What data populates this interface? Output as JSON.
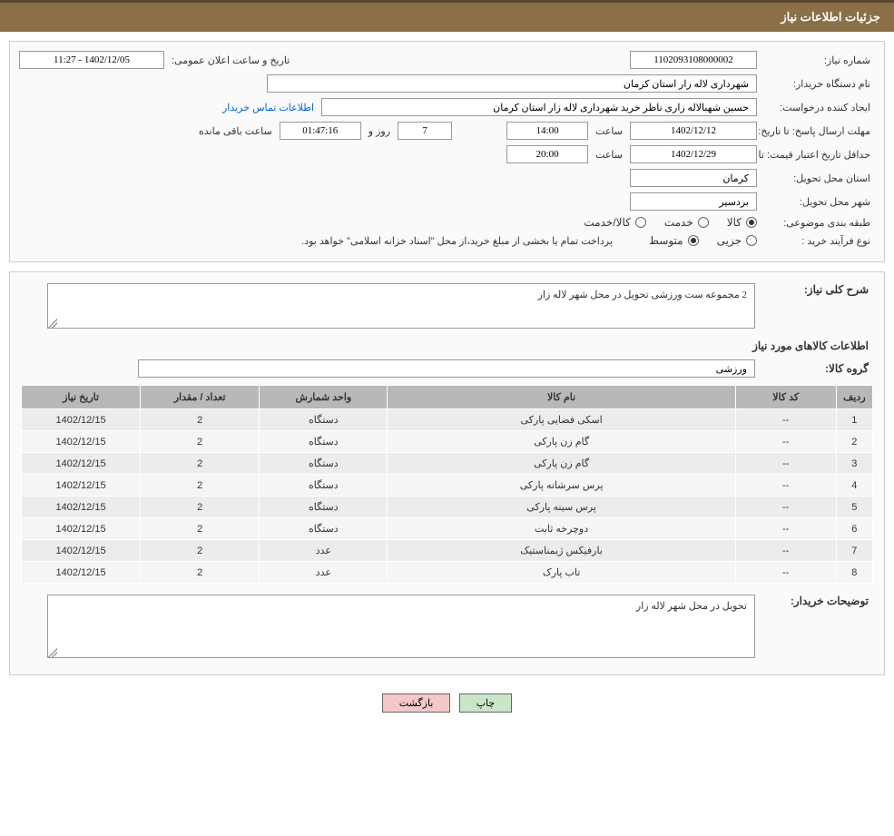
{
  "header": {
    "title": "جزئیات اطلاعات نیاز"
  },
  "form": {
    "need_number_label": "شماره نیاز:",
    "need_number": "1102093108000002",
    "announce_label": "تاریخ و ساعت اعلان عمومی:",
    "announce_value": "1402/12/05 - 11:27",
    "buyer_org_label": "نام دستگاه خریدار:",
    "buyer_org": "شهرداری لاله زار استان کرمان",
    "requester_label": "ایجاد کننده درخواست:",
    "requester": "حسین شهبالاله زاری ناظر خرید شهرداری لاله زار استان کرمان",
    "contact_link": "اطلاعات تماس خریدار",
    "deadline_label": "مهلت ارسال پاسخ: تا تاریخ:",
    "deadline_date": "1402/12/12",
    "time_label": "ساعت",
    "deadline_time": "14:00",
    "days_value": "7",
    "days_label": "روز و",
    "countdown": "01:47:16",
    "remaining_label": "ساعت باقی مانده",
    "validity_label": "حداقل تاریخ اعتبار قیمت: تا تاریخ:",
    "validity_date": "1402/12/29",
    "validity_time": "20:00",
    "province_label": "استان محل تحویل:",
    "province": "کرمان",
    "city_label": "شهر محل تحویل:",
    "city": "بردسیر",
    "category_label": "طبقه بندی موضوعی:",
    "cat_goods": "کالا",
    "cat_service": "خدمت",
    "cat_goods_service": "کالا/خدمت",
    "process_label": "نوع فرآیند خرید :",
    "process_partial": "جزیی",
    "process_medium": "متوسط",
    "payment_note": "پرداخت تمام یا بخشی از مبلغ خرید،از محل \"اسناد خزانه اسلامی\" خواهد بود."
  },
  "detail": {
    "desc_label": "شرح کلی نیاز:",
    "desc_value": "2 مجموعه ست ورزشی تحویل در محل شهر لاله زار",
    "items_title": "اطلاعات کالاهای مورد نیاز",
    "group_label": "گروه کالا:",
    "group_value": "ورزشی",
    "buyer_notes_label": "توضیحات خریدار:",
    "buyer_notes_value": "تحویل در محل شهر لاله زار"
  },
  "table": {
    "headers": {
      "idx": "ردیف",
      "code": "کد کالا",
      "name": "نام کالا",
      "unit": "واحد شمارش",
      "qty": "تعداد / مقدار",
      "date": "تاریخ نیاز"
    },
    "rows": [
      {
        "idx": "1",
        "code": "--",
        "name": "اسکی فضایی پارکی",
        "unit": "دستگاه",
        "qty": "2",
        "date": "1402/12/15"
      },
      {
        "idx": "2",
        "code": "--",
        "name": "گام زن پارکی",
        "unit": "دستگاه",
        "qty": "2",
        "date": "1402/12/15"
      },
      {
        "idx": "3",
        "code": "--",
        "name": "گام زن پارکی",
        "unit": "دستگاه",
        "qty": "2",
        "date": "1402/12/15"
      },
      {
        "idx": "4",
        "code": "--",
        "name": "پرس سرشانه پارکی",
        "unit": "دستگاه",
        "qty": "2",
        "date": "1402/12/15"
      },
      {
        "idx": "5",
        "code": "--",
        "name": "پرس سینه پارکی",
        "unit": "دستگاه",
        "qty": "2",
        "date": "1402/12/15"
      },
      {
        "idx": "6",
        "code": "--",
        "name": "دوچرخه ثابت",
        "unit": "دستگاه",
        "qty": "2",
        "date": "1402/12/15"
      },
      {
        "idx": "7",
        "code": "--",
        "name": "بارفیکس ژیمناستیک",
        "unit": "عدد",
        "qty": "2",
        "date": "1402/12/15"
      },
      {
        "idx": "8",
        "code": "--",
        "name": "تاب پارک",
        "unit": "عدد",
        "qty": "2",
        "date": "1402/12/15"
      }
    ]
  },
  "buttons": {
    "print": "چاپ",
    "back": "بازگشت"
  },
  "colors": {
    "header_bg": "#8b6f47",
    "header_border": "#5a4730",
    "th_bg": "#b8b8b8",
    "td_bg": "#ececec",
    "link": "#0066cc",
    "btn_print_bg": "#c8e6c8",
    "btn_back_bg": "#f4c8c8"
  }
}
